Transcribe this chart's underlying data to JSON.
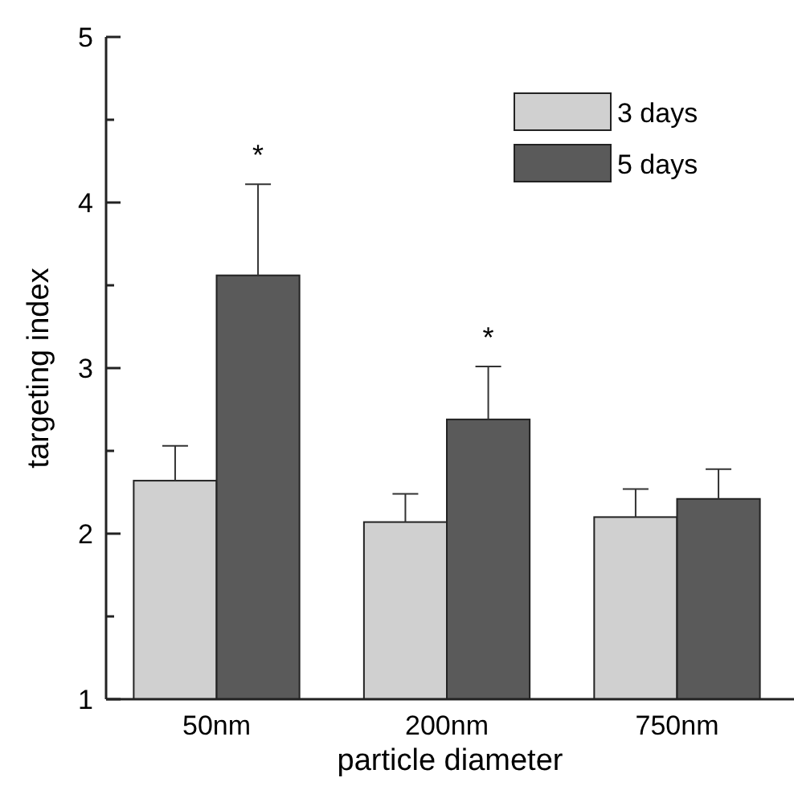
{
  "chart_data": {
    "type": "bar",
    "xlabel": "particle diameter",
    "ylabel": "targeting index",
    "categories": [
      "50nm",
      "200nm",
      "750nm"
    ],
    "series": [
      {
        "name": "3 days",
        "color": "#d0d0d0",
        "values": [
          2.32,
          2.07,
          2.1
        ],
        "errors": [
          [
            2.32,
            2.53
          ],
          [
            2.07,
            2.24
          ],
          [
            2.1,
            2.27
          ]
        ]
      },
      {
        "name": "5 days",
        "color": "#5a5a5a",
        "values": [
          3.56,
          2.69,
          2.21
        ],
        "errors": [
          [
            3.56,
            4.11
          ],
          [
            2.69,
            3.01
          ],
          [
            2.21,
            2.39
          ]
        ]
      }
    ],
    "ylim": [
      1,
      5
    ],
    "yticks": [
      1,
      {
        "value": 1.5,
        "label": null
      },
      2,
      {
        "value": 2.5,
        "label": null
      },
      3,
      {
        "value": 3.5,
        "label": null
      },
      4,
      {
        "value": 4.5,
        "label": null
      },
      5
    ],
    "annotations": [
      "*",
      "*"
    ],
    "legend": "top right",
    "grid": false
  }
}
